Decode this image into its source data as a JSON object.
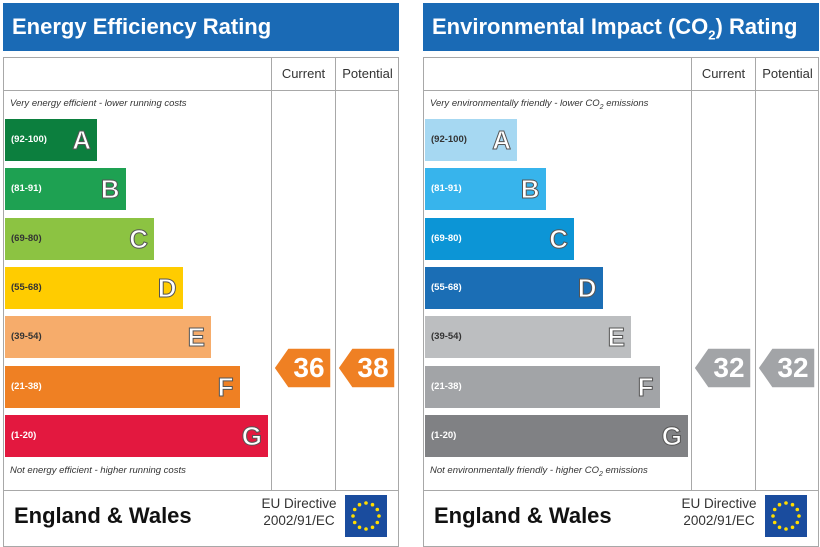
{
  "chart_data": [
    {
      "type": "bar",
      "title": "Energy Efficiency Rating",
      "columns": [
        "Current",
        "Potential"
      ],
      "top_note": "Very energy efficient - lower running costs",
      "bottom_note": "Not energy efficient - higher running costs",
      "bands": [
        {
          "range": "(92-100)",
          "letter": "A",
          "color": "#0c7f3e"
        },
        {
          "range": "(81-91)",
          "letter": "B",
          "color": "#1ea152"
        },
        {
          "range": "(69-80)",
          "letter": "C",
          "color": "#8cc342"
        },
        {
          "range": "(55-68)",
          "letter": "D",
          "color": "#ffcc00"
        },
        {
          "range": "(39-54)",
          "letter": "E",
          "color": "#f6ac6b"
        },
        {
          "range": "(21-38)",
          "letter": "F",
          "color": "#ef8023"
        },
        {
          "range": "(1-20)",
          "letter": "G",
          "color": "#e3183f"
        }
      ],
      "current": 36,
      "potential": 38,
      "current_band": "F",
      "potential_band": "F",
      "arrow_color": "#ef8023"
    },
    {
      "type": "bar",
      "title": "Environmental Impact (CO2) Rating",
      "columns": [
        "Current",
        "Potential"
      ],
      "top_note": "Very environmentally friendly - lower CO2 emissions",
      "bottom_note": "Not environmentally friendly - higher CO2 emissions",
      "bands": [
        {
          "range": "(92-100)",
          "letter": "A",
          "color": "#a6d8f2"
        },
        {
          "range": "(81-91)",
          "letter": "B",
          "color": "#37b4ec"
        },
        {
          "range": "(69-80)",
          "letter": "C",
          "color": "#0c95d6"
        },
        {
          "range": "(55-68)",
          "letter": "D",
          "color": "#1b6eb5"
        },
        {
          "range": "(39-54)",
          "letter": "E",
          "color": "#bcbec0"
        },
        {
          "range": "(21-38)",
          "letter": "F",
          "color": "#a2a4a7"
        },
        {
          "range": "(1-20)",
          "letter": "G",
          "color": "#808184"
        }
      ],
      "current": 32,
      "potential": 32,
      "current_band": "F",
      "potential_band": "F",
      "arrow_color": "#a2a4a7"
    }
  ],
  "footer": {
    "country": "England & Wales",
    "eu_line1": "EU Directive",
    "eu_line2": "2002/91/EC",
    "flag_color": "#1a4c9e",
    "star_color": "#ffdd00"
  }
}
